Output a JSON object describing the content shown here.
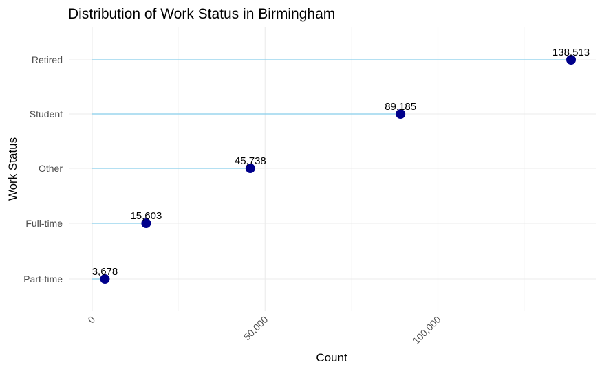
{
  "chart_data": {
    "type": "lollipop",
    "title": "Distribution of Work Status in Birmingham",
    "xlabel": "Count",
    "ylabel": "Work Status",
    "categories": [
      "Part-time",
      "Full-time",
      "Other",
      "Student",
      "Retired"
    ],
    "values": [
      3678,
      15603,
      45738,
      89185,
      138513
    ],
    "data_labels": [
      "3,678",
      "15,603",
      "45,738",
      "89,185",
      "138,513"
    ],
    "xlim": [
      0,
      145000
    ],
    "x_ticks": [
      0,
      50000,
      100000
    ],
    "x_tick_labels": [
      "0",
      "50,000",
      "100,000"
    ],
    "x_minor_ticks": [
      25000,
      75000,
      125000
    ],
    "grid": true,
    "colors": {
      "point": "#00008B",
      "stem": "#87CEEB"
    }
  }
}
